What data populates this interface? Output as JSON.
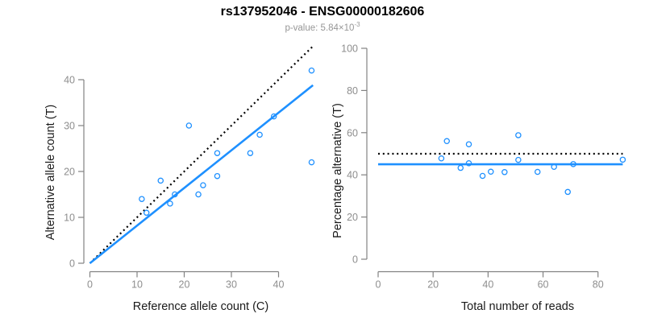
{
  "header": {
    "title": "rs137952046 - ENSG00000182606",
    "subtitle_prefix": "p-value: 5.84×10",
    "subtitle_exponent": "-3"
  },
  "colors": {
    "point_blue": "#1E90FF",
    "fit_blue": "#1E90FF",
    "expected_black": "#000000",
    "axis_gray": "#828282",
    "tick_label_gray": "#8E8E8E",
    "axis_label_black": "#1A1A1A",
    "subtitle_gray": "#969696",
    "background": "#FFFFFF"
  },
  "chart_data": [
    {
      "id": "allele-counts-scatter",
      "type": "scatter",
      "title": "",
      "xlabel": "Reference allele count (C)",
      "ylabel": "Alternative allele count (T)",
      "xlim": [
        0,
        47.5
      ],
      "ylim": [
        0,
        47.5
      ],
      "xticks": [
        0,
        10,
        20,
        30,
        40
      ],
      "yticks": [
        0,
        10,
        20,
        30,
        40
      ],
      "grid": false,
      "legend": "none",
      "marker": "open-circle",
      "points": [
        [
          11,
          14
        ],
        [
          12,
          11
        ],
        [
          15,
          18
        ],
        [
          17,
          13
        ],
        [
          18,
          15
        ],
        [
          21,
          30
        ],
        [
          23,
          15
        ],
        [
          24,
          17
        ],
        [
          27,
          19
        ],
        [
          27,
          24
        ],
        [
          34,
          24
        ],
        [
          36,
          28
        ],
        [
          39,
          32
        ],
        [
          47,
          22
        ],
        [
          47,
          42
        ]
      ],
      "lines": [
        {
          "name": "expected-identity-line",
          "style": "dotted",
          "color_key": "expected_black",
          "from": [
            0,
            0
          ],
          "to": [
            47.2,
            47.2
          ]
        },
        {
          "name": "fitted-regression-line",
          "style": "solid",
          "color_key": "fit_blue",
          "from": [
            0,
            0
          ],
          "to": [
            47.3,
            38.8
          ]
        }
      ]
    },
    {
      "id": "percentage-vs-reads-scatter",
      "type": "scatter",
      "title": "",
      "xlabel": "Total number of reads",
      "ylabel": "Percentage alternative (T)",
      "xlim": [
        0,
        90
      ],
      "ylim": [
        0,
        100
      ],
      "xticks": [
        0,
        20,
        40,
        60,
        80
      ],
      "yticks": [
        0,
        20,
        40,
        60,
        80,
        100
      ],
      "grid": false,
      "legend": "none",
      "marker": "open-circle",
      "points": [
        [
          23,
          47.8
        ],
        [
          25,
          56
        ],
        [
          30,
          43.3
        ],
        [
          33,
          45.5
        ],
        [
          33,
          54.5
        ],
        [
          38,
          39.5
        ],
        [
          41,
          41.5
        ],
        [
          46,
          41.3
        ],
        [
          51,
          47.1
        ],
        [
          51,
          58.8
        ],
        [
          58,
          41.4
        ],
        [
          64,
          43.8
        ],
        [
          69,
          31.9
        ],
        [
          71,
          45.1
        ],
        [
          89,
          47.2
        ]
      ],
      "lines": [
        {
          "name": "expected-50-percent-line",
          "style": "dotted",
          "color_key": "expected_black",
          "from": [
            0,
            50
          ],
          "to": [
            89,
            50
          ]
        },
        {
          "name": "mean-percentage-line",
          "style": "solid",
          "color_key": "fit_blue",
          "from": [
            0,
            45
          ],
          "to": [
            89,
            45
          ]
        }
      ]
    }
  ]
}
